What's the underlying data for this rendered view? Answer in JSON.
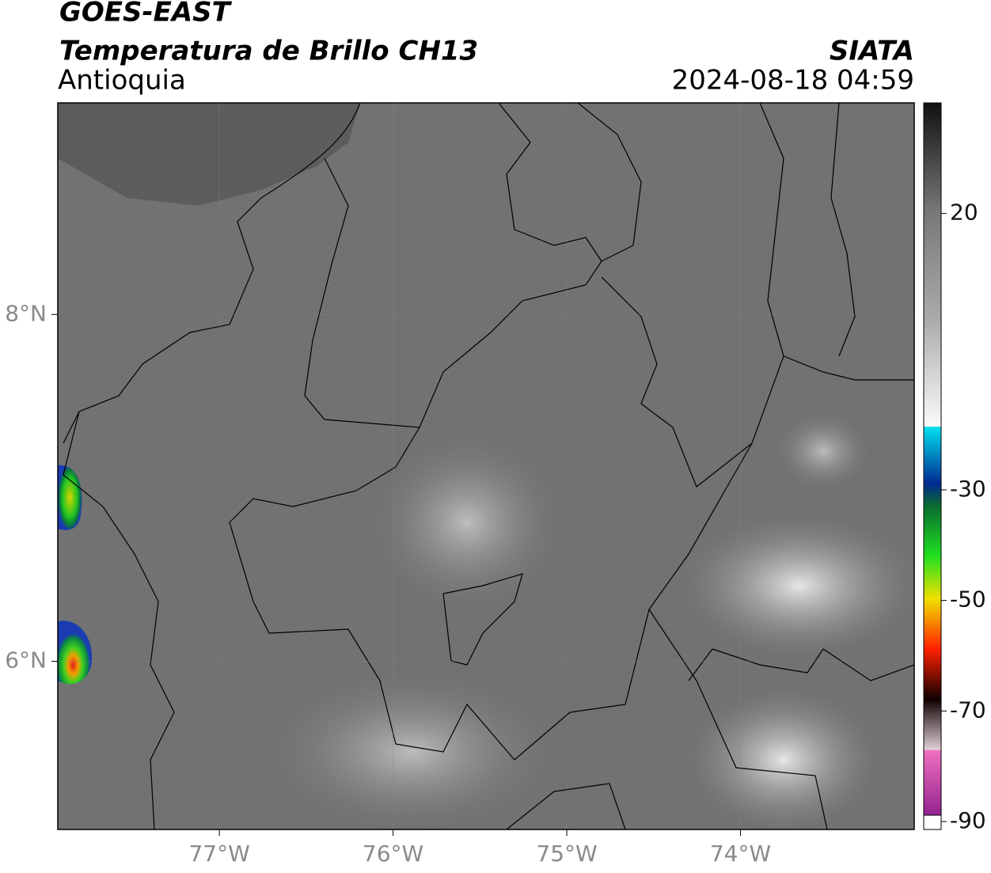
{
  "header": {
    "satellite": "GOES-EAST",
    "product": "Temperatura de Brillo CH13",
    "region": "Antioquia",
    "agency": "SIATA",
    "datetime": "2024-08-18 04:59"
  },
  "map": {
    "lon_range": [
      -77.93,
      -73.0
    ],
    "lat_range": [
      5.03,
      9.22
    ],
    "lon_ticks": [
      {
        "value": -77,
        "label": "77°W"
      },
      {
        "value": -76,
        "label": "76°W"
      },
      {
        "value": -75,
        "label": "75°W"
      },
      {
        "value": -74,
        "label": "74°W"
      }
    ],
    "lat_ticks": [
      {
        "value": 8,
        "label": "8°N"
      },
      {
        "value": 6,
        "label": "6°N"
      }
    ]
  },
  "colorbar": {
    "range": [
      -90,
      40
    ],
    "ticks": [
      20,
      -30,
      -50,
      -70,
      -90
    ]
  }
}
